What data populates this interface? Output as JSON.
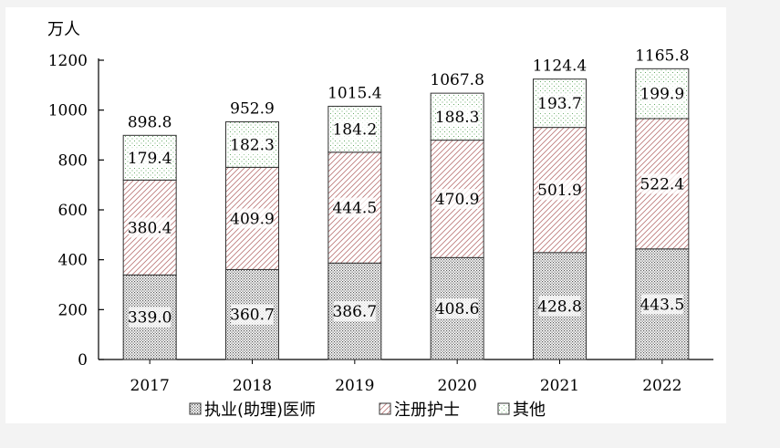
{
  "chart_data": {
    "type": "bar",
    "stacked": true,
    "unit_label": "万人",
    "categories": [
      "2017",
      "2018",
      "2019",
      "2020",
      "2021",
      "2022"
    ],
    "series": [
      {
        "name": "执业(助理)医师",
        "values": [
          339.0,
          360.7,
          386.7,
          408.6,
          428.8,
          443.5
        ],
        "labels": [
          "339.0",
          "360.7",
          "386.7",
          "408.6",
          "428.8",
          "443.5"
        ]
      },
      {
        "name": "注册护士",
        "values": [
          380.4,
          409.9,
          444.5,
          470.9,
          501.9,
          522.4
        ],
        "labels": [
          "380.4",
          "409.9",
          "444.5",
          "470.9",
          "501.9",
          "522.4"
        ]
      },
      {
        "name": "其他",
        "values": [
          179.4,
          182.3,
          184.2,
          188.3,
          193.7,
          199.9
        ],
        "labels": [
          "179.4",
          "182.3",
          "184.2",
          "188.3",
          "193.7",
          "199.9"
        ]
      }
    ],
    "totals": [
      "898.8",
      "952.9",
      "1015.4",
      "1067.8",
      "1124.4",
      "1165.8"
    ],
    "ylim": [
      0,
      1200
    ],
    "yticks": [
      "0",
      "200",
      "400",
      "600",
      "800",
      "1000",
      "1200"
    ],
    "grid": false,
    "legend_position": "bottom"
  }
}
